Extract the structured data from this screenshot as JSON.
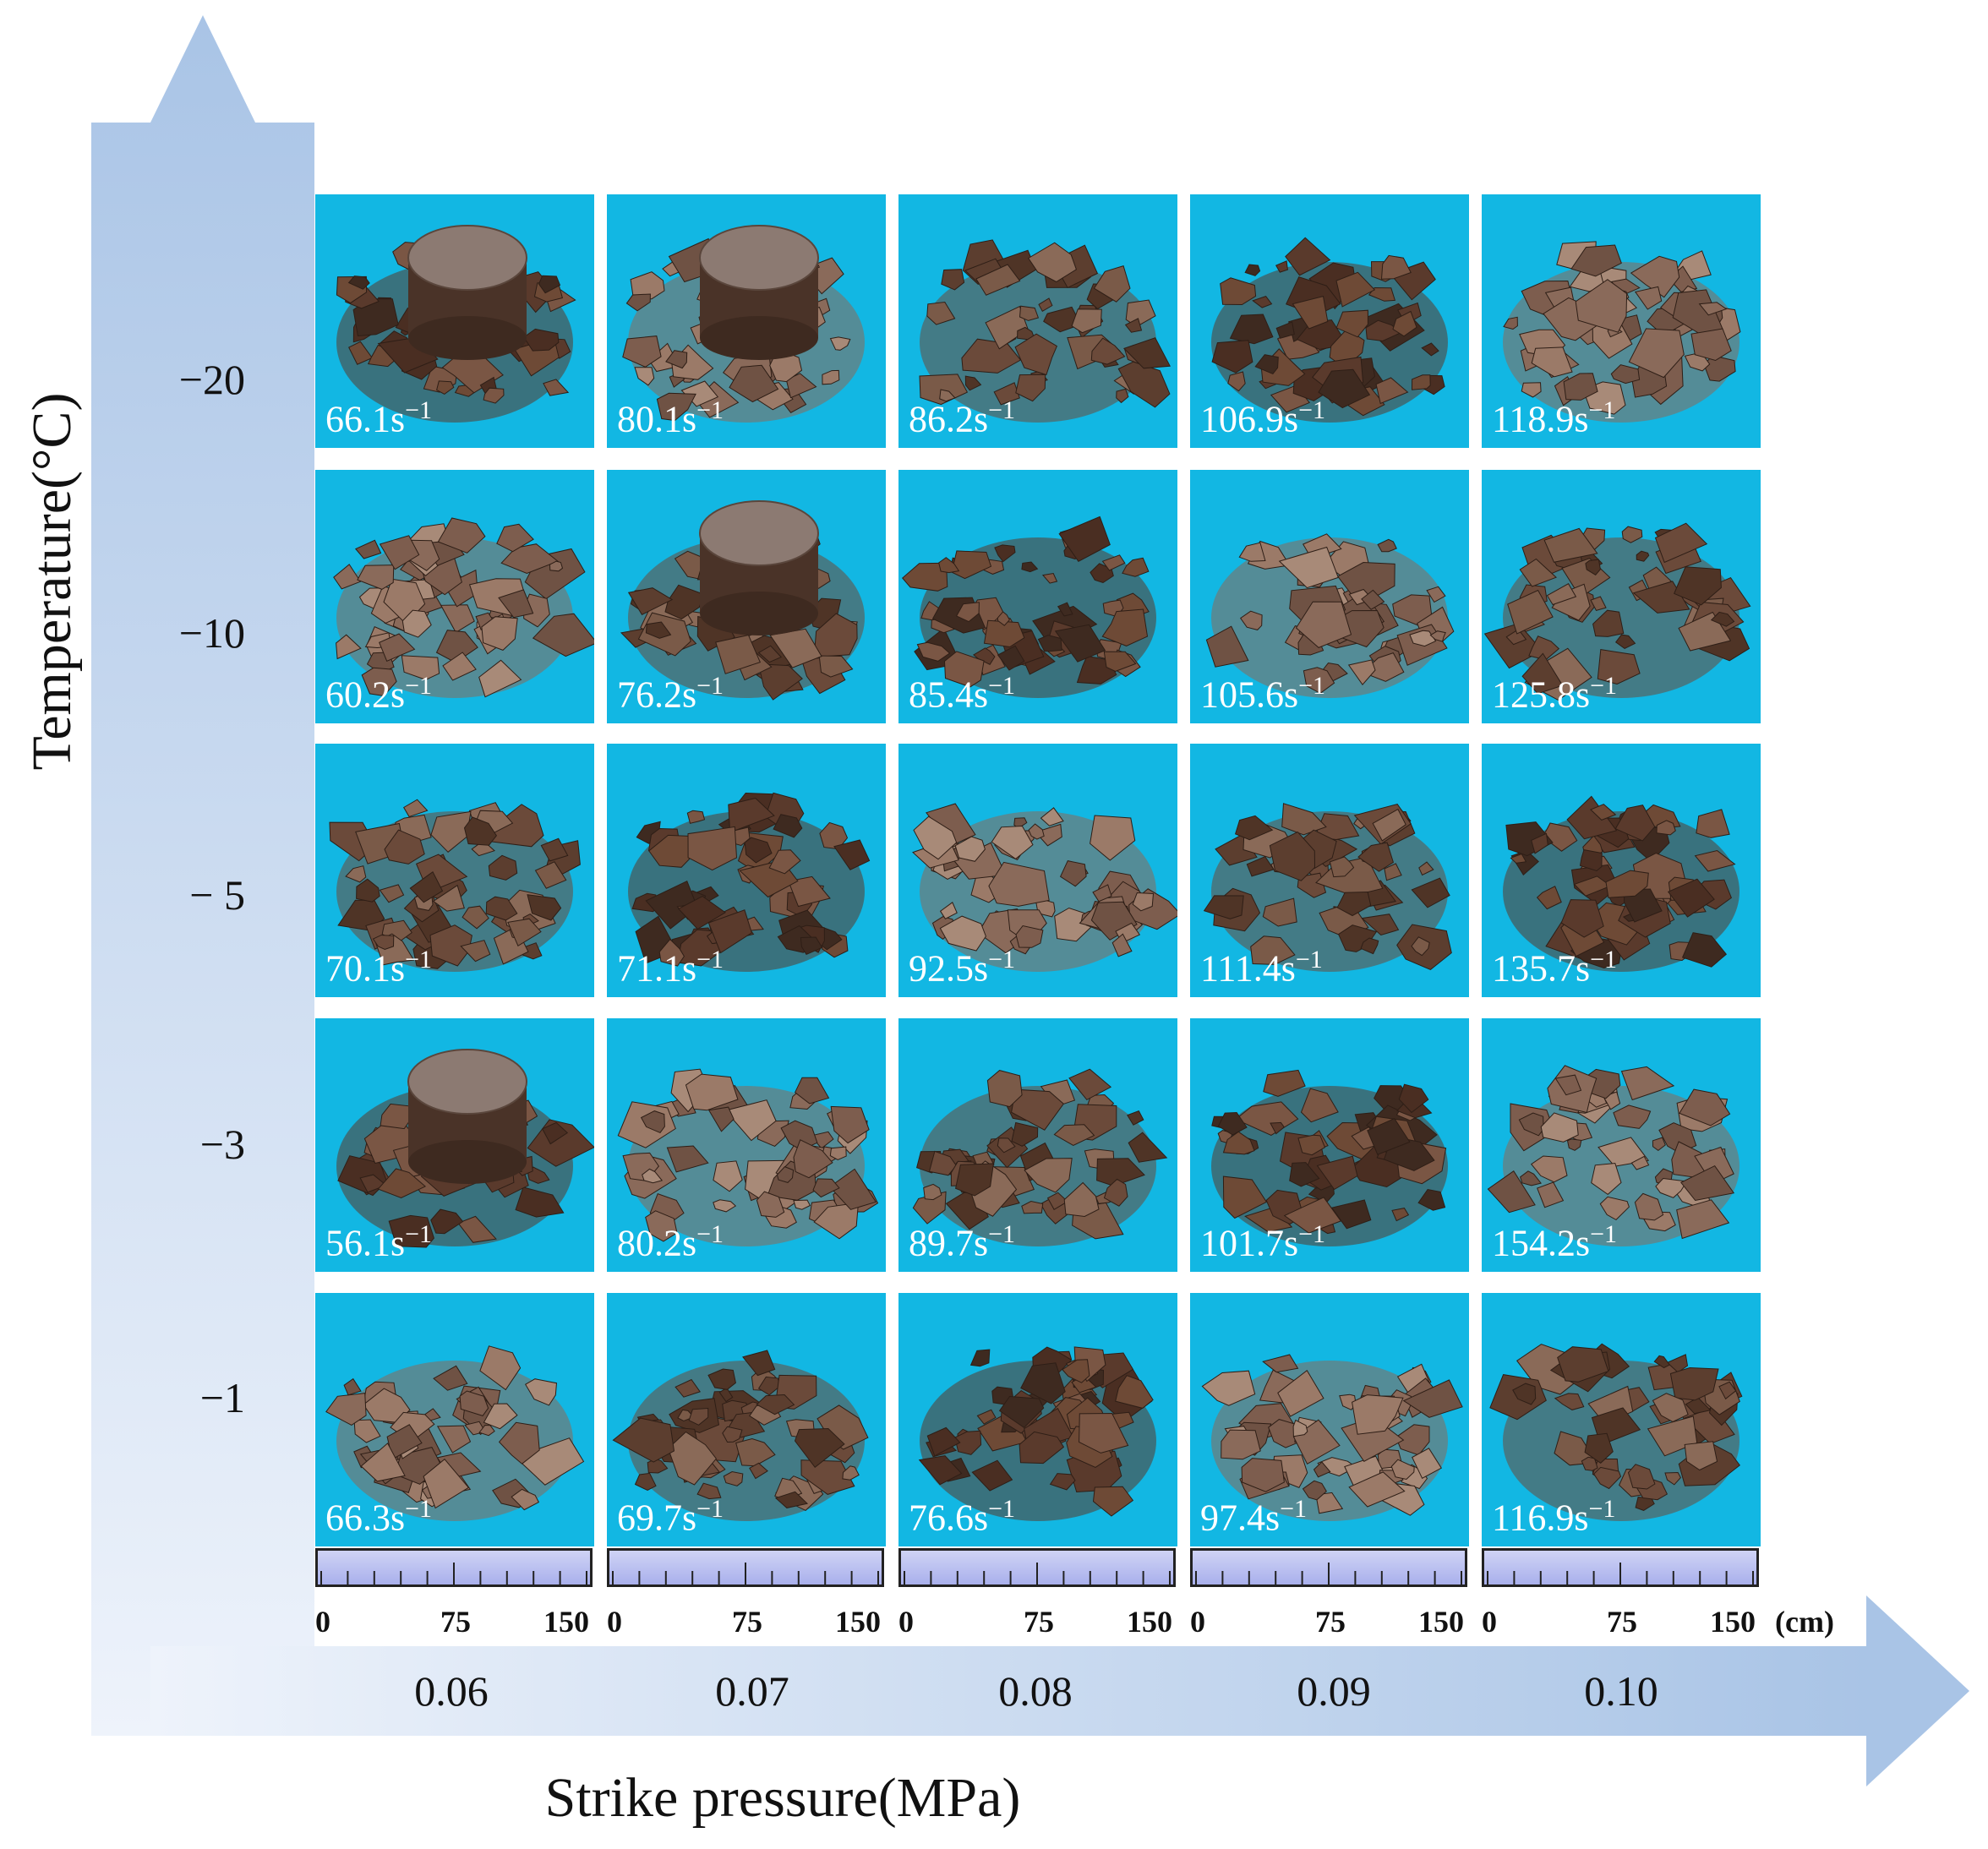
{
  "axis": {
    "y_title": "Temperature(°C)",
    "x_title": "Strike pressure(MPa)",
    "y_values": [
      "−20",
      "−10",
      "− 5",
      "−3",
      "−1"
    ],
    "x_values": [
      "0.06",
      "0.07",
      "0.08",
      "0.09",
      "0.10"
    ]
  },
  "scale": {
    "ticks": [
      "0",
      "75",
      "150"
    ],
    "unit": "(cm)"
  },
  "colors": {
    "tile_bg": "#12b7e3",
    "arrow": "#a8c4e6",
    "rate_text": "#ffffff"
  },
  "rates": [
    [
      {
        "v": "66.1s",
        "e": "−1"
      },
      {
        "v": "80.1s",
        "e": "−1"
      },
      {
        "v": "86.2s",
        "e": "−1"
      },
      {
        "v": "106.9s",
        "e": "−1"
      },
      {
        "v": "118.9s",
        "e": "−1"
      }
    ],
    [
      {
        "v": "60.2s",
        "e": "−1"
      },
      {
        "v": "76.2s",
        "e": "−1"
      },
      {
        "v": "85.4s",
        "e": "−1"
      },
      {
        "v": "105.6s",
        "e": "−1"
      },
      {
        "v": "125.8s",
        "e": "−1"
      }
    ],
    [
      {
        "v": "70.1s",
        "e": "−1"
      },
      {
        "v": "71.1s",
        "e": "−1"
      },
      {
        "v": "92.5s",
        "e": "−1"
      },
      {
        "v": "111.4s",
        "e": "−1"
      },
      {
        "v": "135.7s",
        "e": "−1"
      }
    ],
    [
      {
        "v": "56.1s",
        "e": "−1"
      },
      {
        "v": "80.2s",
        "e": "−1"
      },
      {
        "v": "89.7s",
        "e": "−1"
      },
      {
        "v": "101.7s",
        "e": "−1"
      },
      {
        "v": "154.2s",
        "e": "−1"
      }
    ],
    [
      {
        "v": "66.3s",
        "e": "−1"
      },
      {
        "v": "69.7s",
        "e": "−1"
      },
      {
        "v": "76.6s",
        "e": "−1"
      },
      {
        "v": "97.4s",
        "e": "−1"
      },
      {
        "v": "116.9s",
        "e": "−1"
      }
    ]
  ],
  "intact_core": [
    [
      true,
      true,
      false,
      false,
      false
    ],
    [
      false,
      true,
      false,
      false,
      false
    ],
    [
      false,
      false,
      false,
      false,
      false
    ],
    [
      true,
      false,
      false,
      false,
      false
    ],
    [
      false,
      false,
      false,
      false,
      false
    ]
  ]
}
